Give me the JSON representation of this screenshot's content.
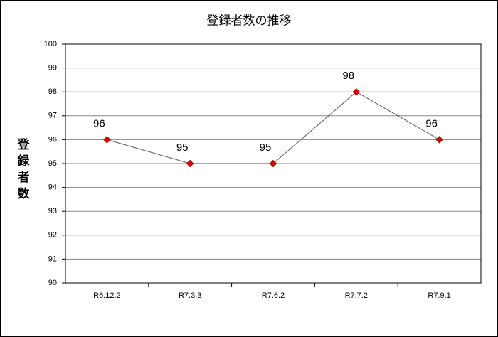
{
  "chart_data": {
    "type": "line",
    "title": "登録者数の推移",
    "y_label": "登録者数",
    "categories": [
      "R6.12.2",
      "R7.3.3",
      "R7.6.2",
      "R7.7.2",
      "R7.9.1"
    ],
    "values": [
      96,
      95,
      95,
      98,
      96
    ],
    "color": "#dd0000",
    "line_color": "#555555",
    "ylim": [
      90,
      100
    ],
    "yticks": [
      90,
      91,
      92,
      93,
      94,
      95,
      96,
      97,
      98,
      99,
      100
    ],
    "grid": true
  }
}
